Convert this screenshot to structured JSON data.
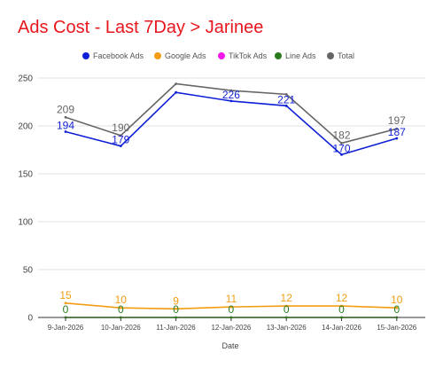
{
  "chart_data": {
    "type": "line",
    "title": "Ads Cost - Last 7Day > Jarinee",
    "xlabel": "Date",
    "ylabel": "",
    "ylim": [
      0,
      250
    ],
    "yticks": [
      0,
      50,
      100,
      150,
      200,
      250
    ],
    "grid": true,
    "legend_position": "top",
    "categories": [
      "9-Jan-2026",
      "10-Jan-2026",
      "11-Jan-2026",
      "12-Jan-2026",
      "13-Jan-2026",
      "14-Jan-2026",
      "15-Jan-2026"
    ],
    "series": [
      {
        "name": "Facebook Ads",
        "color": "#0f1fd6",
        "values": [
          194,
          179,
          235,
          226,
          221,
          170,
          187
        ],
        "labels": [
          "194",
          "179",
          "",
          "226",
          "221",
          "170",
          "187"
        ]
      },
      {
        "name": "Google Ads",
        "color": "#f29d13",
        "values": [
          15,
          10,
          9,
          11,
          12,
          12,
          10
        ],
        "labels": [
          "15",
          "10",
          "9",
          "11",
          "12",
          "12",
          "10"
        ]
      },
      {
        "name": "TikTok Ads",
        "color": "#f019e8",
        "values": [
          0,
          0,
          0,
          0,
          0,
          0,
          0
        ],
        "labels": [
          "",
          "",
          "",
          "",
          "",
          "",
          ""
        ]
      },
      {
        "name": "Line Ads",
        "color": "#2b7a1e",
        "values": [
          0,
          0,
          0,
          0,
          0,
          0,
          0
        ],
        "labels": [
          "0",
          "0",
          "0",
          "0",
          "0",
          "0",
          "0"
        ]
      },
      {
        "name": "Total",
        "color": "#666666",
        "values": [
          209,
          190,
          244,
          237,
          233,
          182,
          197
        ],
        "labels": [
          "209",
          "190",
          "",
          "",
          "",
          "182",
          "197"
        ]
      }
    ]
  }
}
